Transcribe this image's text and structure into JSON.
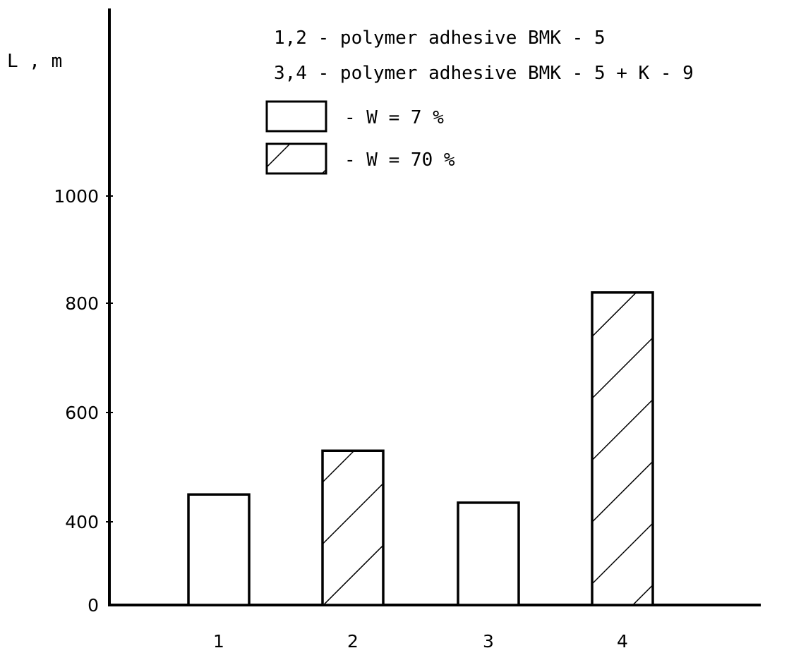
{
  "chart_data": {
    "type": "bar",
    "ylabel": "L , m",
    "xlabel": "",
    "title": "",
    "categories": [
      "1",
      "2",
      "3",
      "4"
    ],
    "values": [
      450,
      530,
      435,
      820
    ],
    "patterns": [
      "plain",
      "hatched",
      "plain",
      "hatched"
    ],
    "y_ticks": [
      {
        "value": 0,
        "label": "0"
      },
      {
        "value": 400,
        "label": "400"
      },
      {
        "value": 600,
        "label": "600"
      },
      {
        "value": 800,
        "label": "800"
      },
      {
        "value": 1000,
        "label": "1000"
      }
    ],
    "annotations": [
      "1,2 - polymer adhesive BMK - 5",
      "3,4 - polymer adhesive BMK - 5 + K - 9"
    ],
    "legend": [
      {
        "pattern": "plain",
        "label": "- W = 7 %"
      },
      {
        "pattern": "hatched",
        "label": "- W = 70 %"
      }
    ],
    "legend_position": "top-right",
    "grid": false,
    "colors": {
      "ink": "#000000",
      "background": "#ffffff"
    }
  }
}
